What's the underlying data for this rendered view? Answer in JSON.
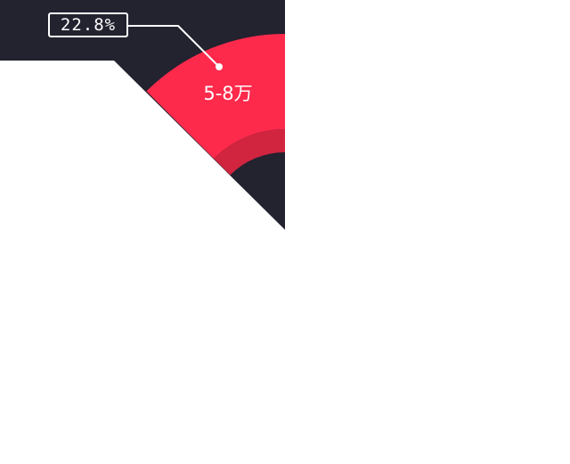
{
  "chart_data": {
    "type": "pie",
    "title": "",
    "slices": [
      {
        "label": "5-8万",
        "percent_label": "22.8%",
        "value": 22.8
      }
    ]
  },
  "colors": {
    "background_panel": "#23222f",
    "slice_outer": "#fd2a4c",
    "slice_inner": "#d1243f",
    "page": "#ffffff",
    "callout_border": "#ffffff"
  }
}
